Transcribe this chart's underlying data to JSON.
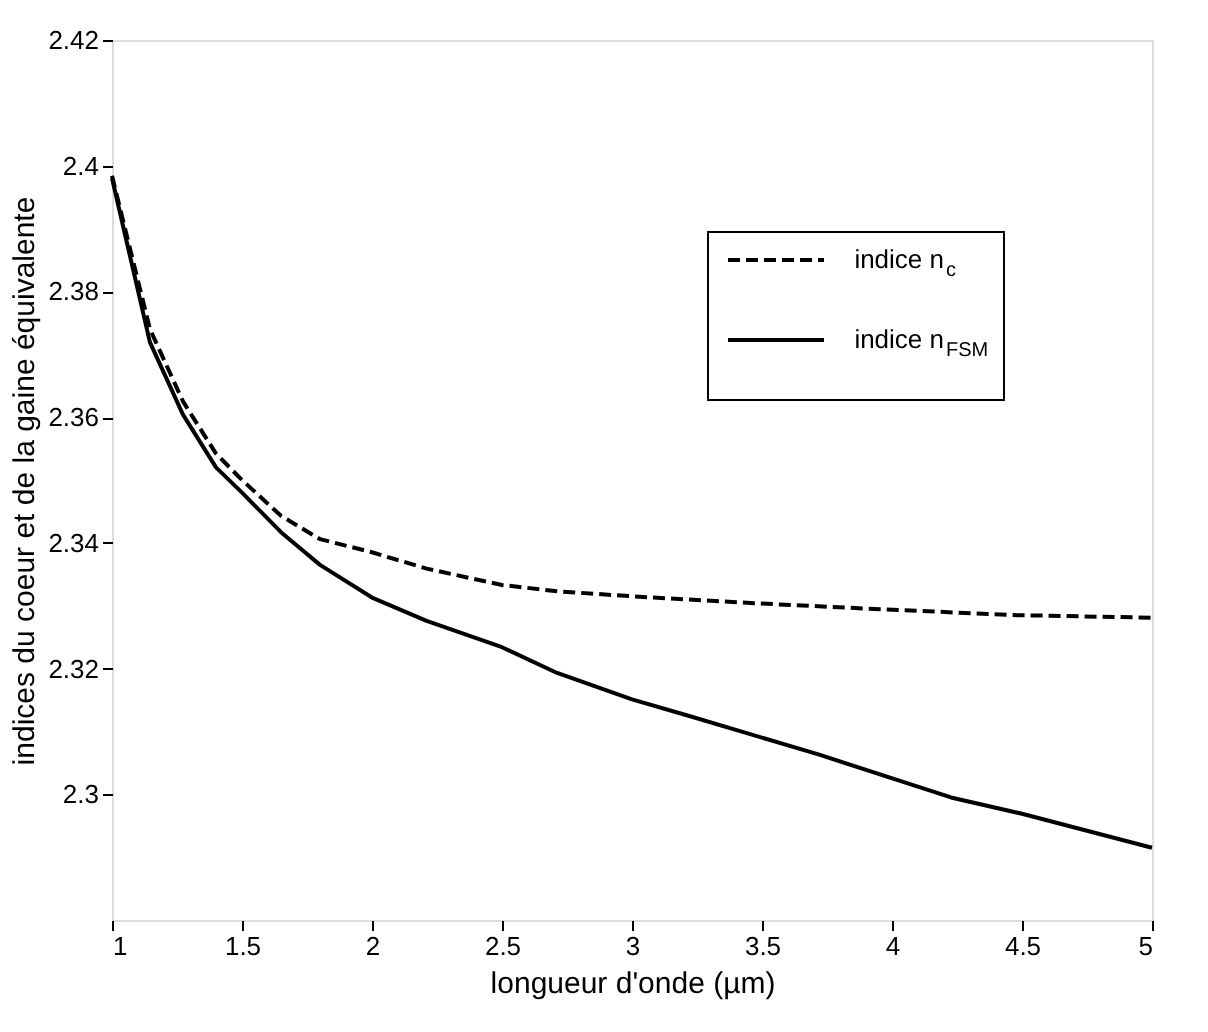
{
  "chart_data": {
    "type": "line",
    "xlabel": "longueur d'onde (µm)",
    "ylabel": "indices du coeur et de la gaine équivalente",
    "xlim": [
      1,
      5
    ],
    "xticks": [
      1,
      1.5,
      2,
      2.5,
      3,
      3.5,
      4,
      4.5,
      5
    ],
    "ylim": [
      2.28,
      2.42
    ],
    "yticks": [
      2.3,
      2.32,
      2.34,
      2.36,
      2.38,
      2.4,
      2.42
    ],
    "legend": "top right",
    "grid": false,
    "marker": "none",
    "series": [
      {
        "name": "indice n$_{c}$",
        "color": "#000000",
        "line_style": "dashed",
        "x": [
          1,
          1.146,
          1.273,
          1.4,
          1.5,
          1.65,
          1.8,
          2.0,
          2.21,
          2.5,
          2.712,
          3.0,
          3.47,
          3.975,
          4.48,
          5
        ],
        "values": [
          2.3984,
          2.374,
          2.3625,
          2.3542,
          2.35,
          2.3443,
          2.3406,
          2.3385,
          2.3359,
          2.3333,
          2.3323,
          2.3315,
          2.3304,
          2.3294,
          2.3285,
          2.3281
        ]
      },
      {
        "name": "indice n$_{FSM}$",
        "color": "#000000",
        "line_style": "solid",
        "x": [
          1,
          1.146,
          1.273,
          1.4,
          1.5,
          1.65,
          1.8,
          2.0,
          2.21,
          2.5,
          2.712,
          3.0,
          3.217,
          3.72,
          4.227,
          4.5,
          5
        ],
        "values": [
          2.398,
          2.3719,
          2.3604,
          2.352,
          2.348,
          2.3417,
          2.3365,
          2.3313,
          2.3276,
          2.3234,
          2.3193,
          2.3151,
          2.3125,
          2.3063,
          2.2995,
          2.2969,
          2.2915
        ]
      }
    ]
  }
}
